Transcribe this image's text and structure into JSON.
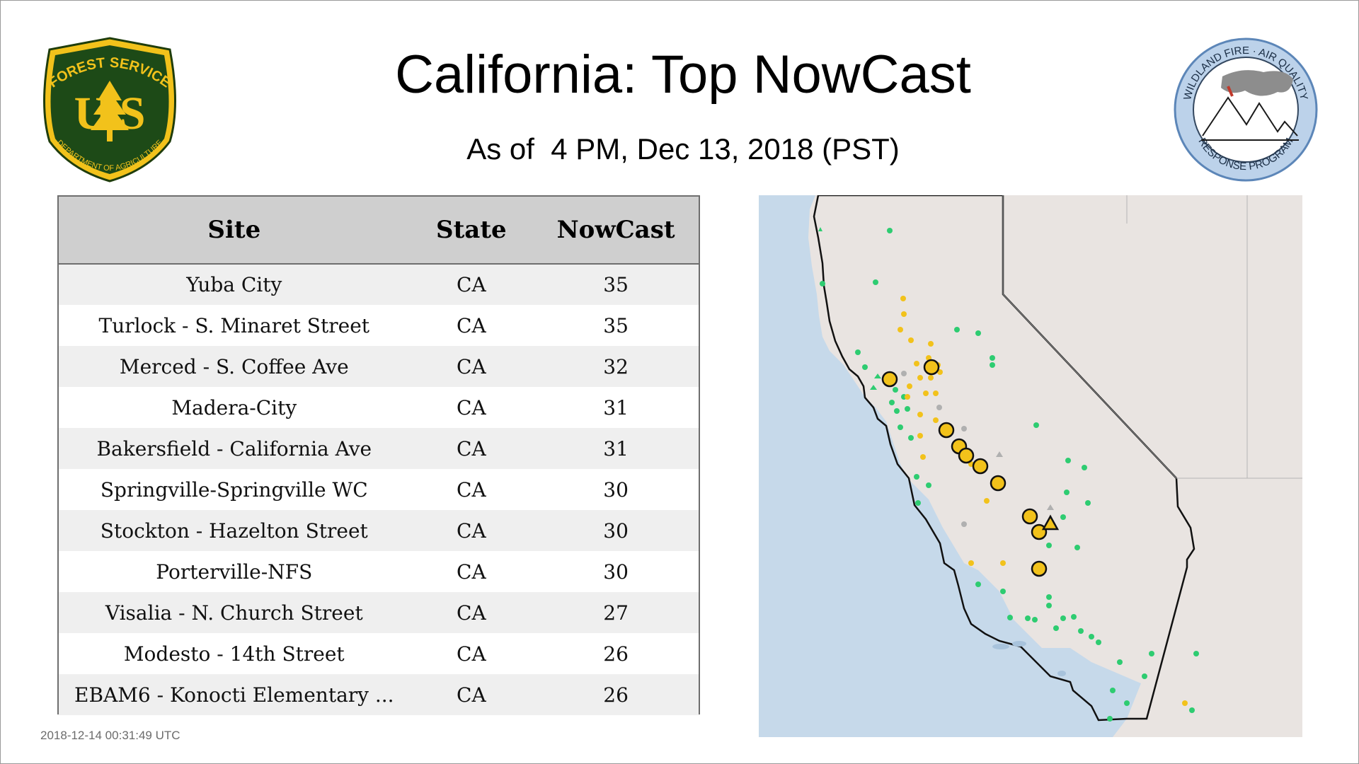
{
  "header": {
    "title": "California: Top NowCast",
    "subtitle": "As of  4 PM, Dec 13, 2018 (PST)"
  },
  "logos": {
    "left": {
      "top_text": "FOREST SERVICE",
      "letters": "U S",
      "bottom_text": "DEPARTMENT OF AGRICULTURE"
    },
    "right": {
      "top_text": "WILDLAND FIRE · AIR QUALITY",
      "bottom_text": "RESPONSE PROGRAM"
    }
  },
  "table": {
    "columns": [
      "Site",
      "State",
      "NowCast"
    ],
    "rows": [
      [
        "Yuba City",
        "CA",
        "35"
      ],
      [
        "Turlock - S. Minaret Street",
        "CA",
        "35"
      ],
      [
        "Merced - S. Coffee Ave",
        "CA",
        "32"
      ],
      [
        "Madera-City",
        "CA",
        "31"
      ],
      [
        "Bakersfield - California Ave",
        "CA",
        "31"
      ],
      [
        "Springville-Springville WC",
        "CA",
        "30"
      ],
      [
        "Stockton - Hazelton Street",
        "CA",
        "30"
      ],
      [
        "Porterville-NFS",
        "CA",
        "30"
      ],
      [
        "Visalia - N. Church Street",
        "CA",
        "27"
      ],
      [
        "Modesto - 14th Street",
        "CA",
        "26"
      ],
      [
        "EBAM6 - Konocti Elementary ...",
        "CA",
        "26"
      ]
    ]
  },
  "footer": {
    "timestamp": "2018-12-14 00:31:49 UTC"
  },
  "colors": {
    "good": "#2ecc71",
    "moderate": "#f2c21b",
    "no_data": "#b0b0b0",
    "water": "#c6d9ea",
    "land": "#ebe6e3"
  }
}
